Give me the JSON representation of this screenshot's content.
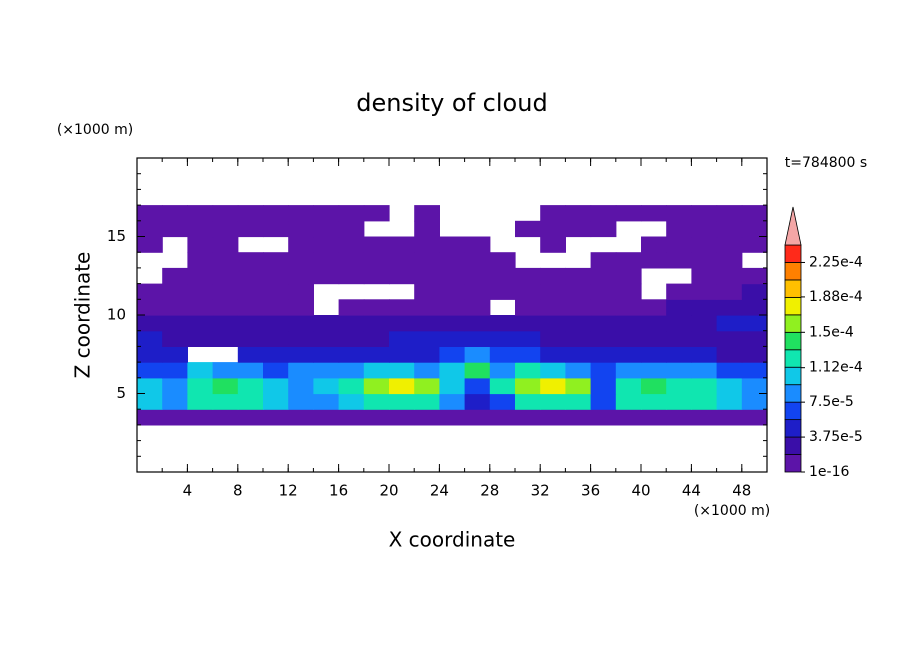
{
  "chart_data": {
    "type": "contour",
    "title": "density of cloud",
    "xlabel": "X coordinate",
    "ylabel": "Z coordinate",
    "x_unit": "(×1000 m)",
    "y_unit": "(×1000 m)",
    "annotation": "t=784800 s",
    "xlim": [
      0,
      50
    ],
    "ylim": [
      0,
      20
    ],
    "xticks": [
      4,
      8,
      12,
      16,
      20,
      24,
      28,
      32,
      36,
      40,
      44,
      48
    ],
    "yticks": [
      5,
      10,
      15
    ],
    "x_minor_step": 2,
    "y_minor_step": 1,
    "cell_width": 2,
    "cell_height": 1,
    "x": [
      1,
      3,
      5,
      7,
      9,
      11,
      13,
      15,
      17,
      19,
      21,
      23,
      25,
      27,
      29,
      31,
      33,
      35,
      37,
      39,
      41,
      43,
      45,
      47,
      49
    ],
    "y": [
      0.5,
      1.5,
      2.5,
      3.5,
      4.5,
      5.5,
      6.5,
      7.5,
      8.5,
      9.5,
      10.5,
      11.5,
      12.5,
      13.5,
      14.5,
      15.5,
      16.5,
      17.5,
      18.5,
      19.5
    ],
    "z": [
      [
        null,
        null,
        null,
        null,
        null,
        null,
        null,
        null,
        null,
        null,
        null,
        null,
        null,
        null,
        null,
        null,
        null,
        null,
        null,
        null,
        null,
        null,
        null,
        null,
        null
      ],
      [
        null,
        null,
        null,
        null,
        null,
        null,
        null,
        null,
        null,
        null,
        null,
        null,
        null,
        null,
        null,
        null,
        null,
        null,
        null,
        null,
        null,
        null,
        null,
        null,
        null
      ],
      [
        null,
        null,
        null,
        null,
        null,
        null,
        null,
        null,
        null,
        null,
        null,
        null,
        null,
        null,
        null,
        null,
        null,
        null,
        null,
        null,
        null,
        null,
        null,
        null,
        null
      ],
      [
        1e-06,
        1e-06,
        1e-06,
        1e-06,
        1e-06,
        1e-06,
        1e-06,
        1e-06,
        1e-06,
        1e-06,
        1e-06,
        1e-06,
        1e-06,
        1e-06,
        1e-06,
        1e-06,
        1e-06,
        1e-06,
        1e-06,
        1e-06,
        1e-06,
        1e-06,
        1e-06,
        1e-06,
        1e-06
      ],
      [
        0.0001,
        8e-05,
        0.00012,
        0.00013,
        0.00012,
        0.0001,
        9e-05,
        8e-05,
        0.0001,
        0.00012,
        0.00013,
        0.00012,
        8e-05,
        5e-05,
        7e-05,
        0.00012,
        0.00013,
        0.00012,
        6e-05,
        0.00012,
        0.00013,
        0.00013,
        0.00012,
        0.0001,
        8e-05
      ],
      [
        0.0001,
        9e-05,
        0.00013,
        0.00014,
        0.00013,
        0.0001,
        9e-05,
        0.0001,
        0.00012,
        0.00016,
        0.00017,
        0.00015,
        0.0001,
        6e-05,
        0.00013,
        0.00016,
        0.00017,
        0.00015,
        7e-05,
        0.00013,
        0.00014,
        0.00013,
        0.00012,
        0.00011,
        9e-05
      ],
      [
        6e-05,
        7e-05,
        0.0001,
        9e-05,
        8e-05,
        7e-05,
        8e-05,
        8e-05,
        9e-05,
        0.0001,
        0.0001,
        9e-05,
        0.00011,
        0.00014,
        8e-05,
        0.00012,
        0.00011,
        9e-05,
        6e-05,
        8e-05,
        9e-05,
        8e-05,
        8e-05,
        7e-05,
        7e-05
      ],
      [
        4e-05,
        4e-05,
        null,
        null,
        5e-05,
        5e-05,
        4e-05,
        5e-05,
        5e-05,
        5e-05,
        5e-05,
        5e-05,
        7e-05,
        8e-05,
        6e-05,
        6e-05,
        5e-05,
        5e-05,
        4e-05,
        4e-05,
        4e-05,
        4e-05,
        4e-05,
        3e-05,
        3e-05
      ],
      [
        4e-05,
        3e-05,
        3e-05,
        3e-05,
        3e-05,
        3e-05,
        3e-05,
        3e-05,
        3e-05,
        3e-05,
        4e-05,
        4e-05,
        4e-05,
        5e-05,
        4e-05,
        4e-05,
        3e-05,
        3e-05,
        3e-05,
        3e-05,
        3e-05,
        3e-05,
        3e-05,
        3e-05,
        3e-05
      ],
      [
        3e-05,
        2e-05,
        2e-05,
        2e-05,
        2e-05,
        2e-05,
        2e-05,
        2e-05,
        2e-05,
        2e-05,
        2e-05,
        2e-05,
        3e-05,
        3e-05,
        2e-05,
        2e-05,
        2e-05,
        2e-05,
        2e-05,
        2e-05,
        2e-05,
        2e-05,
        3e-05,
        4e-05,
        4e-05
      ],
      [
        1e-06,
        1e-06,
        1e-06,
        1e-06,
        1e-06,
        1e-06,
        1e-06,
        null,
        1e-06,
        1e-06,
        1e-06,
        1e-06,
        1e-06,
        1e-06,
        null,
        1e-06,
        1e-06,
        1e-06,
        1e-06,
        1e-06,
        1e-06,
        2e-05,
        2e-05,
        3e-05,
        3e-05
      ],
      [
        1e-06,
        1e-06,
        1e-06,
        1e-06,
        1e-06,
        1e-06,
        1e-06,
        null,
        null,
        null,
        null,
        1e-06,
        1e-06,
        1e-06,
        1e-06,
        1e-06,
        1e-06,
        1e-06,
        1e-06,
        1e-06,
        null,
        1e-06,
        1e-06,
        1e-06,
        2e-05
      ],
      [
        null,
        1e-06,
        1e-06,
        1e-06,
        1e-06,
        1e-06,
        1e-06,
        1e-06,
        1e-06,
        1e-06,
        1e-06,
        1e-06,
        1e-06,
        1e-06,
        1e-06,
        1e-06,
        1e-06,
        1e-06,
        1e-06,
        1e-06,
        null,
        null,
        1e-06,
        1e-06,
        1e-06
      ],
      [
        null,
        null,
        1e-06,
        1e-06,
        1e-06,
        1e-06,
        1e-06,
        1e-06,
        1e-06,
        1e-06,
        1e-06,
        1e-06,
        1e-06,
        1e-06,
        1e-06,
        null,
        null,
        null,
        1e-06,
        1e-06,
        1e-06,
        1e-06,
        1e-06,
        1e-06,
        null
      ],
      [
        1e-06,
        null,
        1e-06,
        1e-06,
        null,
        null,
        1e-06,
        1e-06,
        1e-06,
        1e-06,
        1e-06,
        1e-06,
        1e-06,
        1e-06,
        null,
        null,
        1e-06,
        null,
        null,
        null,
        1e-06,
        1e-06,
        1e-06,
        1e-06,
        1e-06
      ],
      [
        1e-06,
        1e-06,
        1e-06,
        1e-06,
        1e-06,
        1e-06,
        1e-06,
        1e-06,
        1e-06,
        null,
        null,
        1e-06,
        null,
        null,
        null,
        1e-06,
        1e-06,
        1e-06,
        1e-06,
        null,
        null,
        1e-06,
        1e-06,
        1e-06,
        1e-06
      ],
      [
        1e-06,
        1e-06,
        1e-06,
        1e-06,
        1e-06,
        1e-06,
        1e-06,
        1e-06,
        1e-06,
        1e-06,
        null,
        1e-06,
        null,
        null,
        null,
        null,
        1e-06,
        1e-06,
        1e-06,
        1e-06,
        1e-06,
        1e-06,
        1e-06,
        1e-06,
        1e-06
      ],
      [
        null,
        null,
        null,
        null,
        null,
        null,
        null,
        null,
        null,
        null,
        null,
        null,
        null,
        null,
        null,
        null,
        null,
        null,
        null,
        null,
        null,
        null,
        null,
        null,
        null
      ],
      [
        null,
        null,
        null,
        null,
        null,
        null,
        null,
        null,
        null,
        null,
        null,
        null,
        null,
        null,
        null,
        null,
        null,
        null,
        null,
        null,
        null,
        null,
        null,
        null,
        null
      ],
      [
        null,
        null,
        null,
        null,
        null,
        null,
        null,
        null,
        null,
        null,
        null,
        null,
        null,
        null,
        null,
        null,
        null,
        null,
        null,
        null,
        null,
        null,
        null,
        null,
        null
      ]
    ],
    "colorbar": {
      "levels": [
        1e-16,
        1.875e-05,
        3.75e-05,
        5.625e-05,
        7.5e-05,
        9.375e-05,
        0.0001125,
        0.00013125,
        0.00015,
        0.00016875,
        0.0001875,
        0.00020625,
        0.000225,
        0.00024375
      ],
      "colors": [
        "#5c14a8",
        "#3a0ea8",
        "#1e1ec8",
        "#1244f0",
        "#1a8cff",
        "#10c8e8",
        "#10e6b0",
        "#20e060",
        "#90f020",
        "#f0f000",
        "#ffc000",
        "#ff8000",
        "#ff2a1a"
      ],
      "extend_color": "#f4a6a6",
      "ticks": [
        1e-16,
        {
          "value": 3.75e-05,
          "label": "3.75e-5"
        },
        {
          "value": 7.5e-05,
          "label": "7.5e-5"
        },
        {
          "value": 0.000112,
          "label": "1.12e-4"
        },
        {
          "value": 0.00015,
          "label": "1.5e-4"
        },
        {
          "value": 0.000188,
          "label": "1.88e-4"
        },
        {
          "value": 0.000225,
          "label": "2.25e-4"
        }
      ]
    }
  }
}
